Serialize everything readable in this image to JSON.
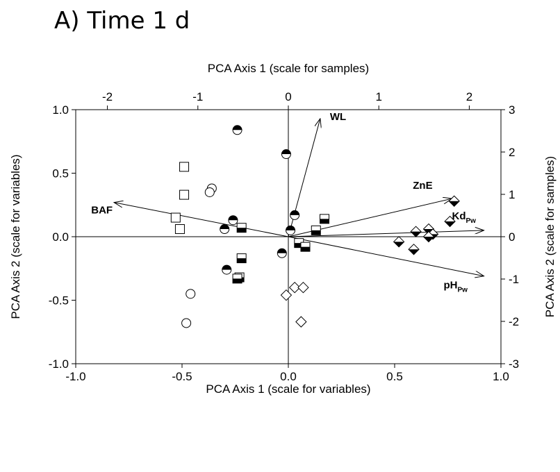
{
  "figure_title": "A) Time 1 d",
  "chart_data": {
    "type": "scatter",
    "subtype": "pca-biplot",
    "axes": {
      "bottom": {
        "label": "PCA Axis 1 (scale for variables)",
        "range": [
          -1.0,
          1.0
        ],
        "ticks": [
          "-1.0",
          "-0.5",
          "0.0",
          "0.5",
          "1.0"
        ],
        "tick_values": [
          -1.0,
          -0.5,
          0.0,
          0.5,
          1.0
        ]
      },
      "left": {
        "label": "PCA Axis 2 (scale for variables)",
        "range": [
          -1.0,
          1.0
        ],
        "ticks": [
          "-1.0",
          "-0.5",
          "0.0",
          "0.5",
          "1.0"
        ],
        "tick_values": [
          -1.0,
          -0.5,
          0.0,
          0.5,
          1.0
        ]
      },
      "top": {
        "label": "PCA Axis 1 (scale for samples)",
        "range": [
          -2.35,
          2.35
        ],
        "ticks": [
          "-2",
          "-1",
          "0",
          "1",
          "2"
        ],
        "tick_values": [
          -2,
          -1,
          0,
          1,
          2
        ]
      },
      "right": {
        "label": "PCA Axis 2 (scale for samples)",
        "range": [
          -3,
          3
        ],
        "ticks": [
          "-3",
          "-2",
          "-1",
          "0",
          "1",
          "2",
          "3"
        ],
        "tick_values": [
          -3,
          -2,
          -1,
          0,
          1,
          2,
          3
        ]
      }
    },
    "grid": false,
    "legend": "none",
    "variables": [
      {
        "label": "WL",
        "sub": "",
        "x": 0.15,
        "y": 0.93
      },
      {
        "label": "BAF",
        "sub": "",
        "x": -0.82,
        "y": 0.27
      },
      {
        "label": "ZnE",
        "sub": "",
        "x": 0.77,
        "y": 0.3
      },
      {
        "label": "Kd",
        "sub": "Pw",
        "x": 0.92,
        "y": 0.05
      },
      {
        "label": "pH",
        "sub": "Pw",
        "x": 0.92,
        "y": -0.31
      }
    ],
    "series": [
      {
        "marker": "circle-top-black",
        "points": [
          [
            -0.24,
            0.84
          ],
          [
            -0.01,
            0.65
          ],
          [
            -0.26,
            0.13
          ],
          [
            -0.3,
            0.06
          ],
          [
            0.03,
            0.17
          ],
          [
            0.01,
            0.05
          ],
          [
            -0.03,
            -0.13
          ],
          [
            -0.29,
            -0.26
          ]
        ]
      },
      {
        "marker": "square-bottom-black",
        "points": [
          [
            -0.22,
            0.07
          ],
          [
            0.17,
            0.14
          ],
          [
            0.13,
            0.05
          ],
          [
            0.05,
            -0.05
          ],
          [
            0.08,
            -0.08
          ],
          [
            -0.22,
            -0.17
          ],
          [
            -0.23,
            -0.32
          ],
          [
            -0.24,
            -0.33
          ]
        ]
      },
      {
        "marker": "diamond-bottom-black",
        "points": [
          [
            0.78,
            0.28
          ],
          [
            0.76,
            0.12
          ],
          [
            0.66,
            0.06
          ],
          [
            0.6,
            0.04
          ],
          [
            0.68,
            0.02
          ],
          [
            0.66,
            0.0
          ],
          [
            0.52,
            -0.04
          ],
          [
            0.59,
            -0.1
          ]
        ]
      },
      {
        "marker": "square-open",
        "points": [
          [
            -0.49,
            0.55
          ],
          [
            -0.49,
            0.33
          ],
          [
            -0.53,
            0.15
          ],
          [
            -0.51,
            0.06
          ]
        ]
      },
      {
        "marker": "circle-open",
        "points": [
          [
            -0.36,
            0.38
          ],
          [
            -0.37,
            0.35
          ],
          [
            -0.46,
            -0.45
          ],
          [
            -0.48,
            -0.68
          ]
        ]
      },
      {
        "marker": "diamond-open",
        "points": [
          [
            0.03,
            -0.4
          ],
          [
            0.07,
            -0.4
          ],
          [
            -0.01,
            -0.46
          ],
          [
            0.06,
            -0.67
          ]
        ]
      }
    ]
  }
}
